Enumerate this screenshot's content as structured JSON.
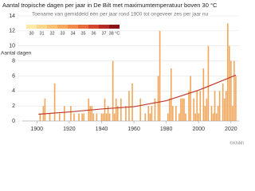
{
  "chart_data": {
    "type": "bar",
    "title": "Aantal tropische dagen per jaar in De Bilt met maximumtemperatuur boven 30 °C",
    "subtitle": "Toename van gemiddeld één per jaar rond 1900 tot ongeveer zes per jaar nu",
    "y_label": "Aantal dagen",
    "source": "©KNMI",
    "x": [
      1901,
      1902,
      1903,
      1904,
      1905,
      1906,
      1907,
      1908,
      1909,
      1910,
      1911,
      1912,
      1913,
      1914,
      1915,
      1916,
      1917,
      1918,
      1919,
      1920,
      1921,
      1922,
      1923,
      1924,
      1925,
      1926,
      1927,
      1928,
      1929,
      1930,
      1931,
      1932,
      1933,
      1934,
      1935,
      1936,
      1937,
      1938,
      1939,
      1940,
      1941,
      1942,
      1943,
      1944,
      1945,
      1946,
      1947,
      1948,
      1949,
      1950,
      1951,
      1952,
      1953,
      1954,
      1955,
      1956,
      1957,
      1958,
      1959,
      1960,
      1961,
      1962,
      1963,
      1964,
      1965,
      1966,
      1967,
      1968,
      1969,
      1970,
      1971,
      1972,
      1973,
      1974,
      1975,
      1976,
      1977,
      1978,
      1979,
      1980,
      1981,
      1982,
      1983,
      1984,
      1985,
      1986,
      1987,
      1988,
      1989,
      1990,
      1991,
      1992,
      1993,
      1994,
      1995,
      1996,
      1997,
      1998,
      1999,
      2000,
      2001,
      2002,
      2003,
      2004,
      2005,
      2006,
      2007,
      2008,
      2009,
      2010,
      2011,
      2012,
      2013,
      2014,
      2015,
      2016,
      2017,
      2018,
      2019,
      2020,
      2021,
      2022,
      2023
    ],
    "values": [
      0,
      1,
      0,
      2,
      3,
      0,
      0,
      1,
      0,
      0,
      5,
      0,
      0,
      1,
      0,
      0,
      2,
      0,
      0,
      0,
      2,
      0,
      1,
      0,
      0,
      1,
      0,
      1,
      1,
      0,
      0,
      3,
      2,
      2,
      1,
      0,
      1,
      0,
      0,
      1,
      1,
      3,
      1,
      2,
      1,
      0,
      8,
      1,
      3,
      2,
      0,
      3,
      0,
      0,
      2,
      0,
      4,
      0,
      5,
      0,
      0,
      0,
      0,
      3,
      0,
      0,
      1,
      0,
      2,
      1,
      2,
      0,
      3,
      0,
      6,
      12,
      0,
      0,
      0,
      0,
      1,
      3,
      7,
      2,
      0,
      2,
      0,
      1,
      3,
      3,
      3,
      1,
      0,
      4,
      6,
      0,
      3,
      1,
      4,
      1,
      4,
      0,
      7,
      2,
      3,
      10,
      0,
      2,
      1,
      4,
      1,
      2,
      4,
      0,
      5,
      3,
      4,
      13,
      10,
      8,
      2,
      8,
      6
    ],
    "color": "#f2a65a",
    "trend": {
      "x": [
        1901,
        1920,
        1940,
        1960,
        1980,
        2000,
        2023
      ],
      "values": [
        0.9,
        1.2,
        1.6,
        1.9,
        2.7,
        4.1,
        6.1
      ],
      "color": "#c0392b"
    },
    "color_scale": {
      "labels": [
        "30",
        "31",
        "32",
        "33",
        "34",
        "35",
        "36",
        "37",
        "38 °C"
      ],
      "colors": [
        "#fde9a6",
        "#fbd68a",
        "#f8c070",
        "#f5a95c",
        "#ef8c4c",
        "#e56b3c",
        "#d4472e",
        "#b52a22",
        "#8b1218"
      ]
    },
    "xlim": [
      1891,
      2025
    ],
    "xticks": [
      1900,
      1920,
      1940,
      1960,
      1980,
      2000,
      2020
    ],
    "ylim": [
      0,
      14
    ],
    "yticks": [
      0,
      2,
      4,
      6,
      8,
      10,
      12,
      14
    ],
    "grid": true
  }
}
